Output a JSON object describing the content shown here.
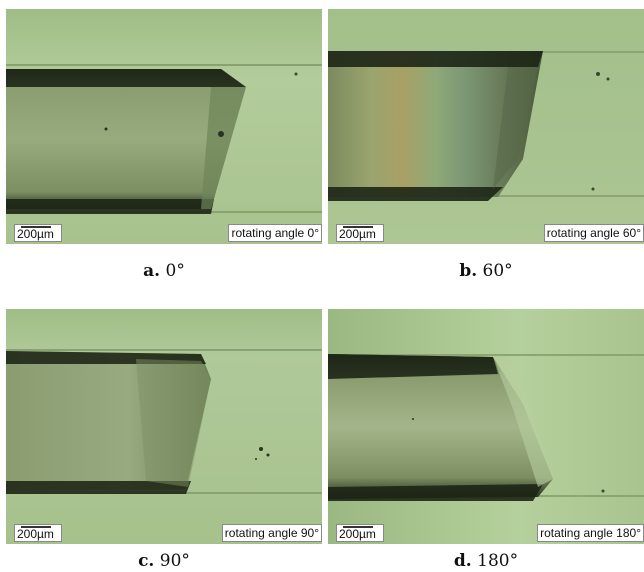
{
  "scale_bar_label": "200µm",
  "panels": [
    {
      "angle_label": "rotating angle 0°",
      "caption_letter": "a.",
      "caption_value": "0°"
    },
    {
      "angle_label": "rotating angle 60°",
      "caption_letter": "b.",
      "caption_value": "60°"
    },
    {
      "angle_label": "rotating angle 90°",
      "caption_letter": "c.",
      "caption_value": "90°"
    },
    {
      "angle_label": "rotating angle 180°",
      "caption_letter": "d.",
      "caption_value": "180°"
    }
  ],
  "colors": {
    "background_green": "#a9c590",
    "fiber_dark": "#1f2a17",
    "fiber_body": "#8da071"
  }
}
